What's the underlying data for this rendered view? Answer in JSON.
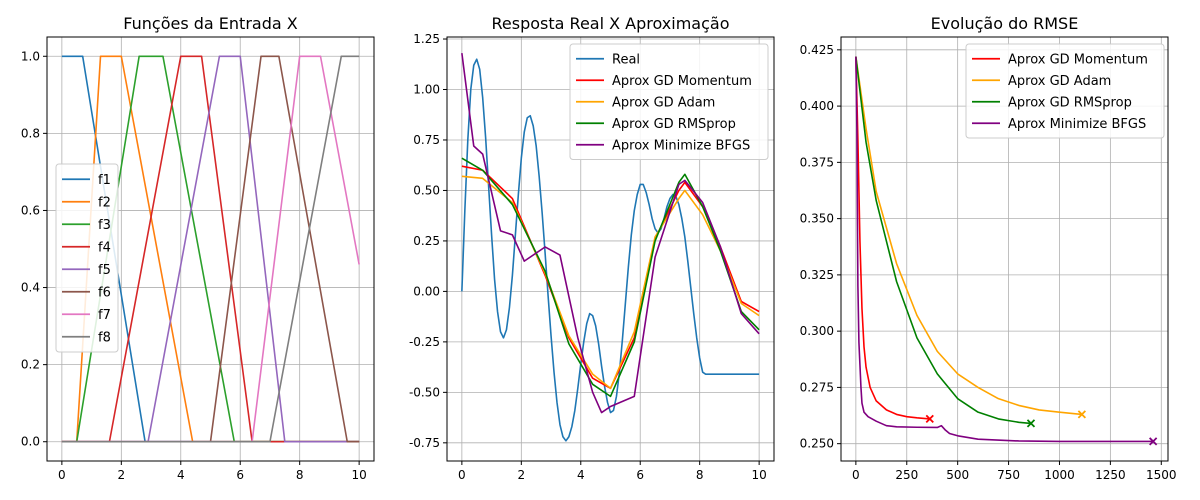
{
  "chart_data": [
    {
      "type": "line",
      "title": "Funções da Entrada X",
      "xlabel": "",
      "ylabel": "",
      "xlim": [
        -0.5,
        10.5
      ],
      "ylim": [
        -0.05,
        1.05
      ],
      "xticks": [
        0,
        2,
        4,
        6,
        8,
        10
      ],
      "yticks": [
        0.0,
        0.2,
        0.4,
        0.6,
        0.8,
        1.0
      ],
      "grid": true,
      "legend_position": "center-left",
      "series": [
        {
          "name": "f1",
          "color": "#1f77b4",
          "x": [
            0,
            0.7,
            2.8,
            10
          ],
          "y": [
            1,
            1,
            0,
            0
          ]
        },
        {
          "name": "f2",
          "color": "#ff7f0e",
          "x": [
            0,
            0.5,
            1.3,
            2.0,
            4.4,
            10
          ],
          "y": [
            0,
            0,
            1,
            1,
            0,
            0
          ]
        },
        {
          "name": "f3",
          "color": "#2ca02c",
          "x": [
            0,
            0.5,
            2.6,
            3.4,
            5.8,
            10
          ],
          "y": [
            0,
            0,
            1,
            1,
            0,
            0
          ]
        },
        {
          "name": "f4",
          "color": "#d62728",
          "x": [
            0,
            1.6,
            4.0,
            4.7,
            6.4,
            10
          ],
          "y": [
            0,
            0,
            1,
            1,
            0,
            0
          ]
        },
        {
          "name": "f5",
          "color": "#9467bd",
          "x": [
            0,
            2.9,
            5.3,
            6.0,
            7.5,
            10
          ],
          "y": [
            0,
            0,
            1,
            1,
            0,
            0
          ]
        },
        {
          "name": "f6",
          "color": "#8c564b",
          "x": [
            0,
            5.0,
            6.7,
            7.3,
            9.6,
            10
          ],
          "y": [
            0,
            0,
            1,
            1,
            0,
            0
          ]
        },
        {
          "name": "f7",
          "color": "#e377c2",
          "x": [
            0,
            6.4,
            8.0,
            8.7,
            10
          ],
          "y": [
            0,
            0,
            1,
            1,
            0.46
          ]
        },
        {
          "name": "f8",
          "color": "#7f7f7f",
          "x": [
            0,
            7.0,
            9.4,
            10
          ],
          "y": [
            0,
            0,
            1,
            1
          ]
        }
      ]
    },
    {
      "type": "line",
      "title": "Resposta Real X Aproximação",
      "xlabel": "",
      "ylabel": "",
      "xlim": [
        -0.5,
        10.5
      ],
      "ylim": [
        -0.84,
        1.26
      ],
      "xticks": [
        0,
        2,
        4,
        6,
        8,
        10
      ],
      "yticks": [
        -0.75,
        -0.5,
        -0.25,
        0.0,
        0.25,
        0.5,
        0.75,
        1.0,
        1.25
      ],
      "grid": true,
      "legend_position": "top-right",
      "series": [
        {
          "name": "Real",
          "color": "#1f77b4",
          "x": [
            0,
            0.1,
            0.2,
            0.3,
            0.4,
            0.5,
            0.6,
            0.7,
            0.8,
            0.9,
            1.0,
            1.1,
            1.2,
            1.3,
            1.4,
            1.5,
            1.6,
            1.7,
            1.8,
            1.9,
            2.0,
            2.1,
            2.2,
            2.3,
            2.4,
            2.5,
            2.6,
            2.7,
            2.8,
            2.9,
            3.0,
            3.1,
            3.2,
            3.3,
            3.4,
            3.5,
            3.6,
            3.7,
            3.8,
            3.9,
            4.0,
            4.1,
            4.2,
            4.3,
            4.4,
            4.5,
            4.6,
            4.7,
            4.8,
            4.9,
            5.0,
            5.1,
            5.2,
            5.3,
            5.4,
            5.5,
            5.6,
            5.7,
            5.8,
            5.9,
            6.0,
            6.1,
            6.2,
            6.3,
            6.4,
            6.5,
            6.6,
            6.7,
            6.8,
            6.9,
            7.0,
            7.1,
            7.2,
            7.3,
            7.4,
            7.5,
            7.6,
            7.7,
            7.8,
            7.9,
            8.0,
            8.1,
            8.2,
            8.3,
            8.4,
            8.5,
            8.6,
            8.7,
            8.8,
            8.9,
            9.0,
            9.1,
            9.2,
            9.3,
            9.4,
            9.5,
            9.6,
            9.7,
            9.8,
            9.9,
            10.0
          ],
          "y": [
            0.0,
            0.4,
            0.75,
            1.0,
            1.12,
            1.15,
            1.1,
            0.96,
            0.76,
            0.52,
            0.28,
            0.06,
            -0.1,
            -0.2,
            -0.23,
            -0.19,
            -0.08,
            0.08,
            0.28,
            0.48,
            0.66,
            0.79,
            0.86,
            0.87,
            0.82,
            0.72,
            0.57,
            0.39,
            0.19,
            -0.02,
            -0.22,
            -0.4,
            -0.55,
            -0.66,
            -0.72,
            -0.74,
            -0.72,
            -0.67,
            -0.59,
            -0.48,
            -0.36,
            -0.25,
            -0.16,
            -0.11,
            -0.12,
            -0.17,
            -0.26,
            -0.37,
            -0.47,
            -0.55,
            -0.6,
            -0.59,
            -0.52,
            -0.4,
            -0.24,
            -0.06,
            0.12,
            0.28,
            0.4,
            0.48,
            0.53,
            0.53,
            0.49,
            0.43,
            0.36,
            0.31,
            0.29,
            0.31,
            0.36,
            0.42,
            0.46,
            0.48,
            0.47,
            0.43,
            0.36,
            0.27,
            0.15,
            0.02,
            -0.11,
            -0.23,
            -0.33,
            -0.4,
            -0.41,
            -0.41,
            -0.41,
            -0.41,
            -0.41,
            -0.41,
            -0.41,
            -0.41,
            -0.41,
            -0.41,
            -0.41,
            -0.41,
            -0.41,
            -0.41,
            -0.41,
            -0.41,
            -0.41,
            -0.41,
            -0.41
          ]
        },
        {
          "name": "Aprox GD Momentum",
          "color": "#ff0000",
          "x": [
            0,
            0.7,
            1.7,
            2.8,
            3.6,
            4.4,
            5.0,
            5.8,
            6.5,
            7.3,
            7.5,
            8.1,
            8.7,
            9.4,
            10.0
          ],
          "y": [
            0.62,
            0.6,
            0.46,
            0.08,
            -0.23,
            -0.43,
            -0.48,
            -0.23,
            0.26,
            0.5,
            0.54,
            0.42,
            0.22,
            -0.05,
            -0.1
          ]
        },
        {
          "name": "Aprox GD Adam",
          "color": "#ffa500",
          "x": [
            0,
            0.7,
            1.7,
            2.8,
            3.6,
            4.4,
            5.0,
            5.8,
            6.5,
            7.3,
            7.5,
            8.1,
            8.7,
            9.4,
            10.0
          ],
          "y": [
            0.57,
            0.56,
            0.44,
            0.09,
            -0.22,
            -0.41,
            -0.48,
            -0.2,
            0.27,
            0.46,
            0.5,
            0.38,
            0.2,
            -0.06,
            -0.12
          ]
        },
        {
          "name": "Aprox GD RMSprop",
          "color": "#008000",
          "x": [
            0,
            0.7,
            1.7,
            2.8,
            3.6,
            4.4,
            5.0,
            5.8,
            6.5,
            7.3,
            7.5,
            8.1,
            8.7,
            9.4,
            10.0
          ],
          "y": [
            0.66,
            0.6,
            0.43,
            0.1,
            -0.26,
            -0.46,
            -0.52,
            -0.25,
            0.25,
            0.54,
            0.58,
            0.42,
            0.2,
            -0.1,
            -0.19
          ]
        },
        {
          "name": "Aprox Minimize BFGS",
          "color": "#800080",
          "x": [
            0,
            0.4,
            0.7,
            1.3,
            1.7,
            2.1,
            2.8,
            3.3,
            3.9,
            4.4,
            4.7,
            5.0,
            5.8,
            6.5,
            7.3,
            7.5,
            8.1,
            8.7,
            9.4,
            10.0
          ],
          "y": [
            1.18,
            0.72,
            0.68,
            0.3,
            0.28,
            0.15,
            0.22,
            0.18,
            -0.23,
            -0.5,
            -0.6,
            -0.57,
            -0.52,
            0.17,
            0.53,
            0.55,
            0.44,
            0.22,
            -0.11,
            -0.21
          ]
        }
      ]
    },
    {
      "type": "line",
      "title": "Evolução do RMSE",
      "xlabel": "",
      "ylabel": "",
      "xlim": [
        -73,
        1533
      ],
      "ylim": [
        0.2423,
        0.4307
      ],
      "xticks": [
        0,
        250,
        500,
        750,
        1000,
        1250,
        1500
      ],
      "yticks": [
        0.25,
        0.275,
        0.3,
        0.325,
        0.35,
        0.375,
        0.4,
        0.425
      ],
      "ytick_labels": [
        "0.250",
        "0.275",
        "0.300",
        "0.325",
        "0.350",
        "0.375",
        "0.400",
        "0.425"
      ],
      "grid": true,
      "legend_position": "top-right",
      "series": [
        {
          "name": "Aprox GD Momentum",
          "color": "#ff0000",
          "marker_at_end": true,
          "x": [
            0,
            10,
            20,
            30,
            40,
            50,
            70,
            100,
            150,
            200,
            250,
            300,
            363
          ],
          "y": [
            0.422,
            0.385,
            0.34,
            0.31,
            0.293,
            0.284,
            0.275,
            0.269,
            0.265,
            0.263,
            0.262,
            0.2615,
            0.261
          ]
        },
        {
          "name": "Aprox GD Adam",
          "color": "#ffa500",
          "marker_at_end": true,
          "x": [
            0,
            50,
            100,
            200,
            300,
            400,
            500,
            600,
            700,
            800,
            900,
            1000,
            1110
          ],
          "y": [
            0.422,
            0.39,
            0.362,
            0.33,
            0.307,
            0.291,
            0.281,
            0.275,
            0.27,
            0.267,
            0.265,
            0.264,
            0.263
          ]
        },
        {
          "name": "Aprox GD RMSprop",
          "color": "#008000",
          "marker_at_end": true,
          "x": [
            0,
            50,
            100,
            200,
            300,
            400,
            500,
            600,
            700,
            800,
            860
          ],
          "y": [
            0.422,
            0.384,
            0.358,
            0.322,
            0.297,
            0.281,
            0.27,
            0.264,
            0.261,
            0.2595,
            0.259
          ]
        },
        {
          "name": "Aprox Minimize BFGS",
          "color": "#800080",
          "marker_at_end": true,
          "x": [
            0,
            5,
            10,
            15,
            20,
            25,
            30,
            40,
            60,
            100,
            150,
            200,
            300,
            400,
            420,
            440,
            460,
            500,
            600,
            800,
            1000,
            1200,
            1460
          ],
          "y": [
            0.422,
            0.39,
            0.32,
            0.295,
            0.285,
            0.275,
            0.268,
            0.264,
            0.262,
            0.26,
            0.258,
            0.2575,
            0.2573,
            0.2572,
            0.258,
            0.256,
            0.2545,
            0.2535,
            0.252,
            0.2512,
            0.251,
            0.251,
            0.251
          ]
        }
      ]
    }
  ]
}
